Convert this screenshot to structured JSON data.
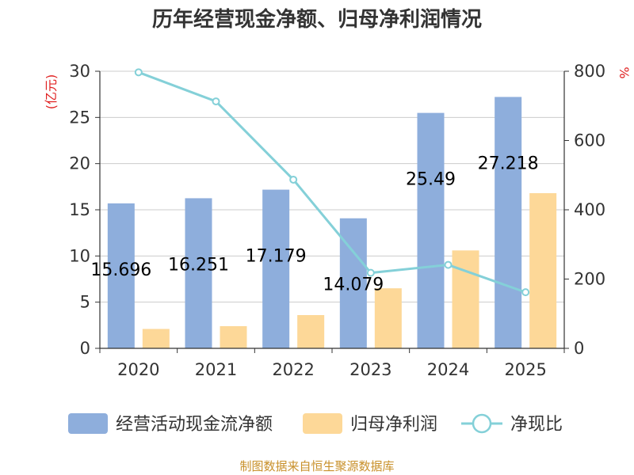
{
  "chart_data": {
    "type": "bar",
    "title": "历年经营现金净额、归母净利润情况",
    "categories": [
      "2020",
      "2021",
      "2022",
      "2023",
      "2024",
      "2025"
    ],
    "series": [
      {
        "name": "经营活动现金流净额",
        "axis": "left",
        "kind": "bar",
        "color": "#8eaedc",
        "values": [
          15.696,
          16.251,
          17.179,
          14.079,
          25.49,
          27.218
        ],
        "labels": [
          "15.696",
          "16.251",
          "17.179",
          "14.079",
          "25.49",
          "27.218"
        ]
      },
      {
        "name": "归母净利润",
        "axis": "left",
        "kind": "bar",
        "color": "#fdd898",
        "values": [
          2.1,
          2.4,
          3.6,
          6.5,
          10.6,
          16.8
        ]
      },
      {
        "name": "净现比",
        "axis": "right",
        "kind": "line",
        "color": "#84d0d8",
        "values": [
          797,
          713,
          487,
          218,
          241,
          162
        ]
      }
    ],
    "yleft": {
      "label": "(亿元)",
      "ylim": [
        0,
        30
      ],
      "ticks": [
        0,
        5,
        10,
        15,
        20,
        25,
        30
      ]
    },
    "yright": {
      "label": "%",
      "ylim": [
        0,
        800
      ],
      "ticks": [
        0,
        200,
        400,
        600,
        800
      ]
    },
    "legend_position": "bottom",
    "source": "制图数据来自恒生聚源数据库"
  }
}
